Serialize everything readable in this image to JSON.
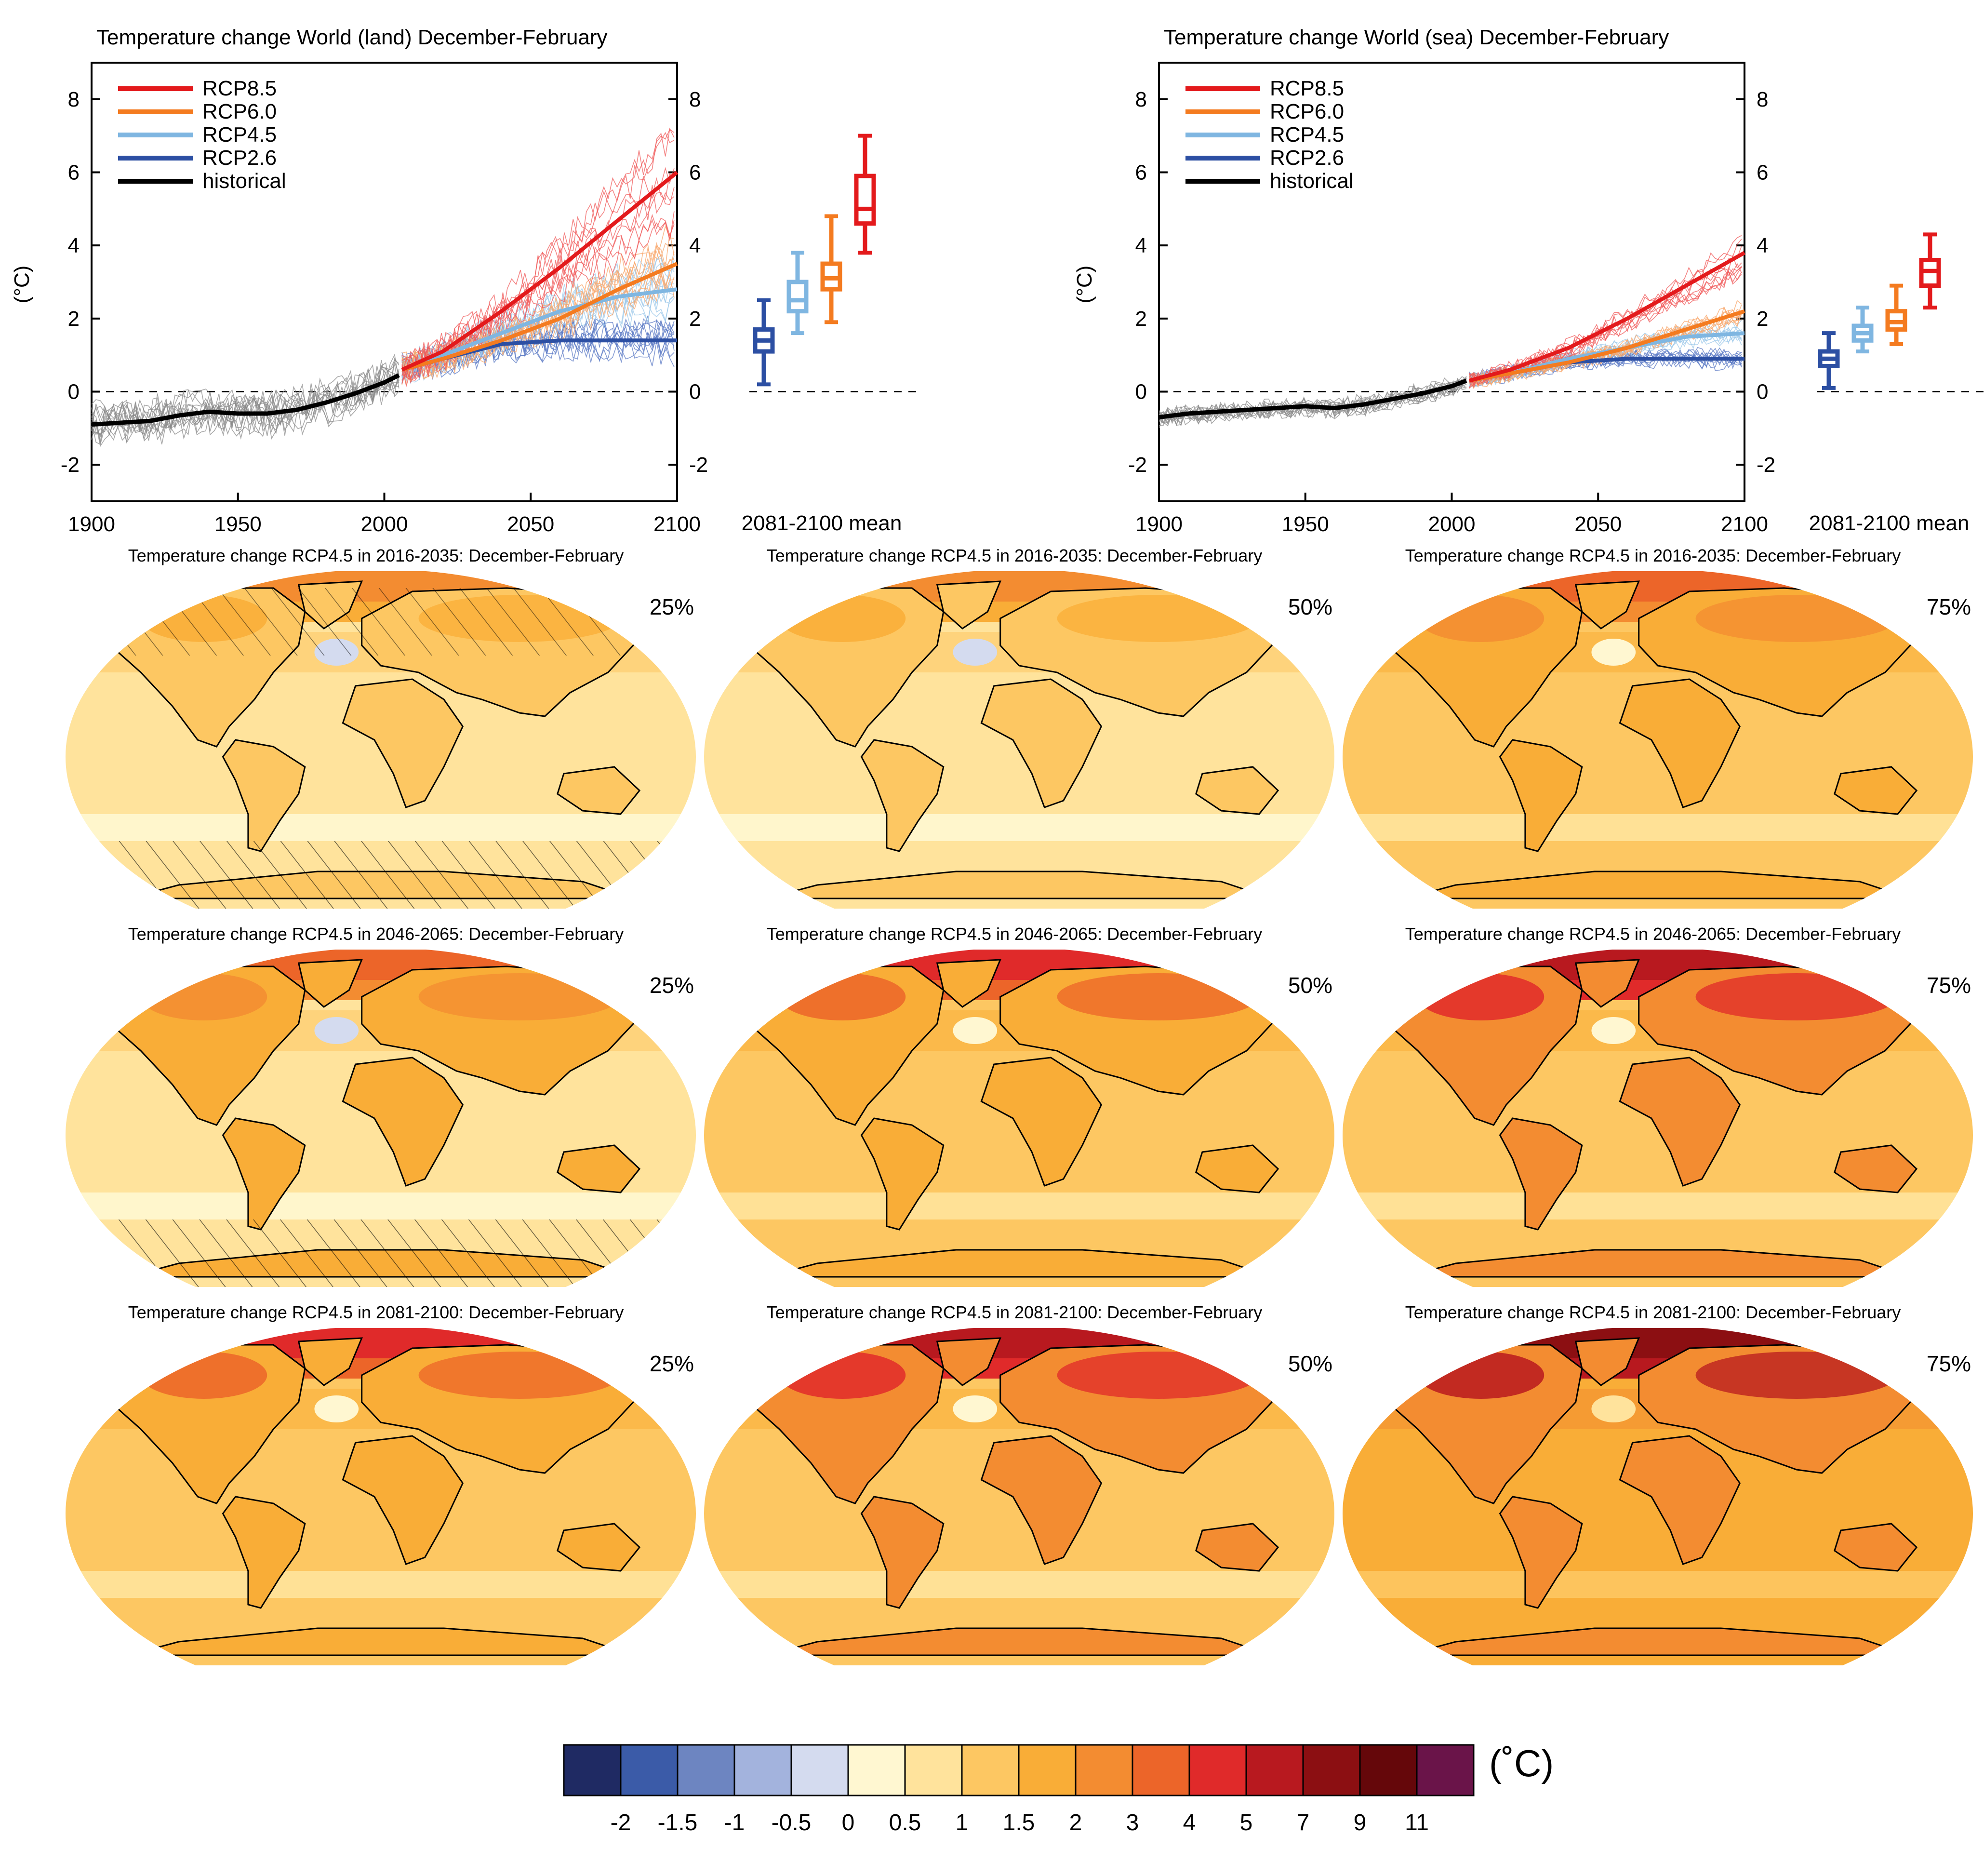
{
  "chart_data": [
    {
      "type": "line",
      "title": "Temperature change World (land) December-February",
      "ylabel": "(°C)",
      "xlim": [
        1900,
        2100
      ],
      "ylim": [
        -3,
        9
      ],
      "xticks": [
        "1900",
        "1950",
        "2000",
        "2050",
        "2100"
      ],
      "yticks": [
        "-2",
        "0",
        "2",
        "4",
        "6",
        "8"
      ],
      "legend_position": "top-left",
      "series": [
        {
          "name": "RCP8.5",
          "color": "#e31a1c",
          "x": [
            2006,
            2020,
            2040,
            2060,
            2080,
            2100
          ],
          "y": [
            0.6,
            1.1,
            2.2,
            3.4,
            4.7,
            6.0
          ]
        },
        {
          "name": "RCP6.0",
          "color": "#f47b20",
          "x": [
            2006,
            2020,
            2040,
            2060,
            2080,
            2100
          ],
          "y": [
            0.6,
            0.9,
            1.4,
            2.0,
            2.8,
            3.5
          ]
        },
        {
          "name": "RCP4.5",
          "color": "#7fb6e1",
          "x": [
            2006,
            2020,
            2040,
            2060,
            2080,
            2100
          ],
          "y": [
            0.6,
            1.0,
            1.6,
            2.2,
            2.6,
            2.8
          ]
        },
        {
          "name": "RCP2.6",
          "color": "#2c4fa3",
          "x": [
            2006,
            2020,
            2040,
            2060,
            2080,
            2100
          ],
          "y": [
            0.6,
            0.9,
            1.3,
            1.4,
            1.4,
            1.4
          ]
        },
        {
          "name": "historical",
          "color": "#000000",
          "x": [
            1900,
            1910,
            1920,
            1930,
            1940,
            1950,
            1960,
            1970,
            1980,
            1990,
            2000,
            2005
          ],
          "y": [
            -0.9,
            -0.85,
            -0.8,
            -0.65,
            -0.55,
            -0.6,
            -0.6,
            -0.5,
            -0.3,
            -0.05,
            0.25,
            0.45
          ]
        }
      ],
      "boxplot": {
        "label": "2081-2100 mean",
        "boxes": [
          {
            "name": "RCP2.6",
            "color": "#2c4fa3",
            "min": 0.2,
            "q1": 1.1,
            "median": 1.4,
            "q3": 1.7,
            "max": 2.5
          },
          {
            "name": "RCP4.5",
            "color": "#7fb6e1",
            "min": 1.6,
            "q1": 2.2,
            "median": 2.5,
            "q3": 3.0,
            "max": 3.8
          },
          {
            "name": "RCP6.0",
            "color": "#f47b20",
            "min": 1.9,
            "q1": 2.8,
            "median": 3.1,
            "q3": 3.5,
            "max": 4.8
          },
          {
            "name": "RCP8.5",
            "color": "#e31a1c",
            "min": 3.8,
            "q1": 4.6,
            "median": 5.0,
            "q3": 5.9,
            "max": 7.0
          }
        ]
      }
    },
    {
      "type": "line",
      "title": "Temperature change World (sea) December-February",
      "ylabel": "(°C)",
      "xlim": [
        1900,
        2100
      ],
      "ylim": [
        -3,
        9
      ],
      "xticks": [
        "1900",
        "1950",
        "2000",
        "2050",
        "2100"
      ],
      "yticks": [
        "-2",
        "0",
        "2",
        "4",
        "6",
        "8"
      ],
      "legend_position": "top-left",
      "series": [
        {
          "name": "RCP8.5",
          "color": "#e31a1c",
          "x": [
            2006,
            2020,
            2040,
            2060,
            2080,
            2100
          ],
          "y": [
            0.3,
            0.6,
            1.2,
            2.0,
            2.9,
            3.8
          ]
        },
        {
          "name": "RCP6.0",
          "color": "#f47b20",
          "x": [
            2006,
            2020,
            2040,
            2060,
            2080,
            2100
          ],
          "y": [
            0.3,
            0.5,
            0.8,
            1.2,
            1.7,
            2.2
          ]
        },
        {
          "name": "RCP4.5",
          "color": "#7fb6e1",
          "x": [
            2006,
            2020,
            2040,
            2060,
            2080,
            2100
          ],
          "y": [
            0.3,
            0.5,
            0.9,
            1.2,
            1.5,
            1.6
          ]
        },
        {
          "name": "RCP2.6",
          "color": "#2c4fa3",
          "x": [
            2006,
            2020,
            2040,
            2060,
            2080,
            2100
          ],
          "y": [
            0.3,
            0.5,
            0.8,
            0.9,
            0.9,
            0.9
          ]
        },
        {
          "name": "historical",
          "color": "#000000",
          "x": [
            1900,
            1910,
            1920,
            1930,
            1940,
            1950,
            1960,
            1970,
            1980,
            1990,
            2000,
            2005
          ],
          "y": [
            -0.7,
            -0.6,
            -0.55,
            -0.5,
            -0.45,
            -0.4,
            -0.45,
            -0.35,
            -0.2,
            -0.05,
            0.15,
            0.3
          ]
        }
      ],
      "boxplot": {
        "label": "2081-2100 mean",
        "boxes": [
          {
            "name": "RCP2.6",
            "color": "#2c4fa3",
            "min": 0.1,
            "q1": 0.7,
            "median": 0.9,
            "q3": 1.1,
            "max": 1.6
          },
          {
            "name": "RCP4.5",
            "color": "#7fb6e1",
            "min": 1.1,
            "q1": 1.4,
            "median": 1.6,
            "q3": 1.8,
            "max": 2.3
          },
          {
            "name": "RCP6.0",
            "color": "#f47b20",
            "min": 1.3,
            "q1": 1.7,
            "median": 1.9,
            "q3": 2.2,
            "max": 2.9
          },
          {
            "name": "RCP8.5",
            "color": "#e31a1c",
            "min": 2.3,
            "q1": 2.9,
            "median": 3.3,
            "q3": 3.6,
            "max": 4.3
          }
        ]
      }
    },
    {
      "type": "heatmap",
      "maps": [
        {
          "title": "Temperature change RCP4.5 in 2016-2035: December-February",
          "percentile": "25%",
          "ocean_level": 0.5,
          "land_level": 1,
          "arctic_level": 2
        },
        {
          "title": "Temperature change RCP4.5 in 2016-2035: December-February",
          "percentile": "50%",
          "ocean_level": 0.5,
          "land_level": 1,
          "arctic_level": 2
        },
        {
          "title": "Temperature change RCP4.5 in 2016-2035: December-February",
          "percentile": "75%",
          "ocean_level": 1,
          "land_level": 1.5,
          "arctic_level": 3
        },
        {
          "title": "Temperature change RCP4.5 in 2046-2065: December-February",
          "percentile": "25%",
          "ocean_level": 0.5,
          "land_level": 1.5,
          "arctic_level": 3
        },
        {
          "title": "Temperature change RCP4.5 in 2046-2065: December-February",
          "percentile": "50%",
          "ocean_level": 1,
          "land_level": 1.5,
          "arctic_level": 4
        },
        {
          "title": "Temperature change RCP4.5 in 2046-2065: December-February",
          "percentile": "75%",
          "ocean_level": 1,
          "land_level": 2,
          "arctic_level": 5
        },
        {
          "title": "Temperature change RCP4.5 in 2081-2100: December-February",
          "percentile": "25%",
          "ocean_level": 1,
          "land_level": 1.5,
          "arctic_level": 4
        },
        {
          "title": "Temperature change RCP4.5 in 2081-2100: December-February",
          "percentile": "50%",
          "ocean_level": 1,
          "land_level": 2,
          "arctic_level": 5
        },
        {
          "title": "Temperature change RCP4.5 in 2081-2100: December-February",
          "percentile": "75%",
          "ocean_level": 1.5,
          "land_level": 2,
          "arctic_level": 7
        }
      ],
      "colorbar": {
        "unit": "(˚C)",
        "colors": [
          "#1f2a63",
          "#3b5ba8",
          "#6d85c1",
          "#a3b3dd",
          "#d4dbef",
          "#fff7d1",
          "#ffe39c",
          "#fdc762",
          "#f9ad37",
          "#f38c31",
          "#ec6529",
          "#e02a2a",
          "#b8191f",
          "#8c0f12",
          "#65070a",
          "#6a1449"
        ],
        "labels": [
          "-2",
          "-1.5",
          "-1",
          "-0.5",
          "0",
          "0.5",
          "1",
          "1.5",
          "2",
          "3",
          "4",
          "5",
          "7",
          "9",
          "11"
        ]
      }
    }
  ]
}
